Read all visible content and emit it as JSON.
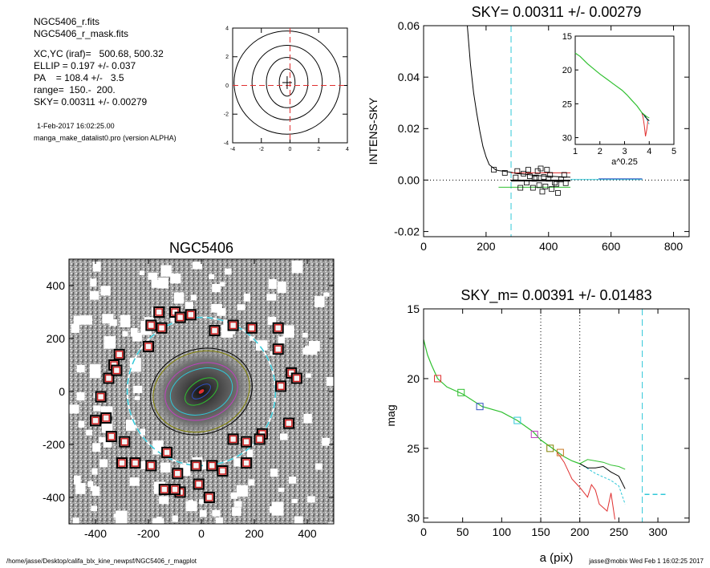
{
  "info": {
    "file1": "NGC5406_r.fits",
    "file2": "NGC5406_r_mask.fits",
    "xcyc": "XC,YC (iraf)=   500.68, 500.32",
    "ellip": "ELLIP = 0.197 +/- 0.037",
    "pa": "PA    = 108.4 +/-   3.5",
    "range": "range=  150.-  200.",
    "sky": "SKY= 0.00311 +/- 0.00279",
    "date": "1-Feb-2017 16:02:25.00",
    "program": "manga_make_datalist0.pro (version ALPHA)"
  },
  "footer": {
    "left": "/home/jasse/Desktop/califa_blx_kine_newpsf/NGC5406_r_magplot",
    "right": "jasse@mobix  Wed Feb  1 16:02:25 2017"
  },
  "colors": {
    "red": "#e03030",
    "green": "#30c030",
    "cyan": "#30c8d8",
    "blue": "#3050c0",
    "magenta": "#c040c0",
    "olive": "#808000",
    "orange": "#c87820"
  },
  "chart_data": [
    {
      "id": "contour",
      "type": "contour",
      "xlim": [
        -4,
        4
      ],
      "ylim": [
        -4,
        4
      ],
      "xticks": [
        "-4",
        "-2",
        "0",
        "2",
        "4"
      ],
      "yticks": [
        "-4",
        "-2",
        "0",
        "2",
        "4"
      ],
      "center": [
        -0.2,
        0.2
      ],
      "levels": [
        {
          "rx": 0.55,
          "ry": 0.95
        },
        {
          "rx": 1.45,
          "ry": 1.75
        },
        {
          "rx": 2.45,
          "ry": 2.6
        },
        {
          "rx": 3.7,
          "ry": 3.6
        }
      ]
    },
    {
      "id": "sky_profile",
      "type": "line",
      "title": "SKY= 0.00311 +/- 0.00279",
      "xlabel": "",
      "ylabel": "INTENS-SKY",
      "xlim": [
        0,
        850
      ],
      "ylim": [
        -0.022,
        0.06
      ],
      "xticks": [
        "0",
        "200",
        "400",
        "600",
        "800"
      ],
      "yticks": [
        "-0.02",
        "0.00",
        "0.02",
        "0.04",
        "0.06"
      ],
      "ytick_values": [
        -0.02,
        0,
        0.02,
        0.04,
        0.06
      ],
      "xtick_values": [
        0,
        200,
        400,
        600,
        800
      ],
      "vline_cyan": 280,
      "profile": [
        [
          140,
          0.06
        ],
        [
          150,
          0.045
        ],
        [
          160,
          0.034
        ],
        [
          170,
          0.026
        ],
        [
          180,
          0.019
        ],
        [
          190,
          0.013
        ],
        [
          200,
          0.009
        ],
        [
          210,
          0.006
        ],
        [
          220,
          0.005
        ],
        [
          230,
          0.004
        ],
        [
          240,
          0.0037
        ],
        [
          260,
          0.0034
        ],
        [
          280,
          0.003
        ],
        [
          300,
          0.0025
        ],
        [
          330,
          0.0022
        ],
        [
          360,
          0.0018
        ],
        [
          400,
          0.0015
        ],
        [
          450,
          0.0012
        ],
        [
          470,
          0.0011
        ]
      ],
      "segments": [
        {
          "color": "red",
          "x": [
            280,
            470
          ],
          "y": 0.0028
        },
        {
          "color": "black",
          "x": [
            280,
            470
          ],
          "y": -0.0002
        },
        {
          "color": "green",
          "x": [
            240,
            470
          ],
          "y": -0.0028
        },
        {
          "color": "cyan",
          "x": [
            470,
            700
          ],
          "y": 0.0002
        },
        {
          "color": "blue",
          "x": [
            560,
            700
          ],
          "y": 0.0005
        }
      ],
      "squares": [
        [
          225,
          0.004
        ],
        [
          260,
          0.0028
        ],
        [
          295,
          0.001
        ],
        [
          300,
          0.0035
        ],
        [
          310,
          -0.003
        ],
        [
          320,
          0.0025
        ],
        [
          330,
          -0.001
        ],
        [
          335,
          0.004
        ],
        [
          340,
          0.0015
        ],
        [
          350,
          -0.003
        ],
        [
          355,
          0.0005
        ],
        [
          360,
          0.001
        ],
        [
          365,
          0.0035
        ],
        [
          370,
          -0.002
        ],
        [
          375,
          0.0045
        ],
        [
          380,
          -0.0045
        ],
        [
          385,
          0.0012
        ],
        [
          390,
          -0.0025
        ],
        [
          395,
          0.004
        ],
        [
          400,
          0.0005
        ],
        [
          405,
          0.002
        ],
        [
          410,
          -0.0035
        ],
        [
          420,
          -0.001
        ],
        [
          425,
          -0.0015
        ],
        [
          430,
          -0.005
        ],
        [
          440,
          0.0002
        ],
        [
          450,
          0.002
        ],
        [
          455,
          -0.0012
        ]
      ],
      "inset": {
        "xlabel": "a^0.25",
        "xlim": [
          1,
          5
        ],
        "ylim": [
          15,
          31
        ],
        "xticks": [
          "1",
          "2",
          "3",
          "4",
          "5"
        ],
        "yticks": [
          "15",
          "20",
          "25",
          "30"
        ],
        "xtick_values": [
          1,
          2,
          3,
          4,
          5
        ],
        "ytick_values": [
          15,
          20,
          25,
          30
        ],
        "curve": [
          [
            1.0,
            17.5
          ],
          [
            1.2,
            18.0
          ],
          [
            1.5,
            19.1
          ],
          [
            1.8,
            20.0
          ],
          [
            2.0,
            20.6
          ],
          [
            2.3,
            21.4
          ],
          [
            2.6,
            22.2
          ],
          [
            2.9,
            23.0
          ],
          [
            3.1,
            23.7
          ],
          [
            3.3,
            24.5
          ],
          [
            3.5,
            25.3
          ],
          [
            3.6,
            25.8
          ],
          [
            3.7,
            26.3
          ]
        ],
        "tail_black": [
          [
            3.7,
            26.3
          ],
          [
            3.8,
            26.7
          ],
          [
            3.9,
            27.2
          ],
          [
            4.0,
            27.5
          ]
        ],
        "tail_red": [
          [
            3.7,
            26.3
          ],
          [
            3.75,
            27.0
          ],
          [
            3.8,
            28.2
          ],
          [
            3.85,
            29.8
          ],
          [
            3.9,
            28.8
          ],
          [
            3.95,
            27.4
          ]
        ],
        "tail_green": [
          [
            3.7,
            26.3
          ],
          [
            3.8,
            26.6
          ],
          [
            3.9,
            26.9
          ],
          [
            4.0,
            27.1
          ]
        ],
        "tail_cyan": [
          [
            3.7,
            26.3
          ],
          [
            3.8,
            26.8
          ],
          [
            3.9,
            27.3
          ],
          [
            4.0,
            28.0
          ]
        ]
      }
    },
    {
      "id": "galaxy_image",
      "type": "image",
      "title": "NGC5406",
      "xlim": [
        -500,
        500
      ],
      "ylim": [
        -500,
        500
      ],
      "xticks": [
        "-400",
        "-200",
        "0",
        "200",
        "400"
      ],
      "yticks": [
        "-400",
        "-200",
        "0",
        "200",
        "400"
      ],
      "tick_values": [
        -400,
        -200,
        0,
        200,
        400
      ],
      "sky_circle_r": 280,
      "isophotes": [
        {
          "color": "black",
          "rx": 195,
          "ry": 160
        },
        {
          "color": "olive",
          "rx": 185,
          "ry": 150
        },
        {
          "color": "magenta",
          "rx": 140,
          "ry": 105
        },
        {
          "color": "cyan",
          "rx": 120,
          "ry": 85
        },
        {
          "color": "green",
          "rx": 70,
          "ry": 40
        },
        {
          "color": "blue",
          "rx": 40,
          "ry": 20
        },
        {
          "color": "red",
          "rx": 10,
          "ry": 5
        }
      ],
      "sky_boxes": [
        [
          -160,
          300
        ],
        [
          -100,
          300
        ],
        [
          -80,
          280
        ],
        [
          -40,
          290
        ],
        [
          -190,
          250
        ],
        [
          -150,
          240
        ],
        [
          50,
          230
        ],
        [
          120,
          250
        ],
        [
          190,
          240
        ],
        [
          290,
          240
        ],
        [
          -310,
          140
        ],
        [
          -200,
          170
        ],
        [
          290,
          160
        ],
        [
          -330,
          100
        ],
        [
          -350,
          50
        ],
        [
          -320,
          80
        ],
        [
          340,
          70
        ],
        [
          360,
          50
        ],
        [
          -380,
          -20
        ],
        [
          300,
          20
        ],
        [
          -360,
          -100
        ],
        [
          -400,
          -110
        ],
        [
          330,
          -120
        ],
        [
          -340,
          -170
        ],
        [
          -290,
          -190
        ],
        [
          230,
          -160
        ],
        [
          170,
          -190
        ],
        [
          120,
          -180
        ],
        [
          -300,
          -270
        ],
        [
          -250,
          -270
        ],
        [
          -190,
          -280
        ],
        [
          -130,
          -230
        ],
        [
          -90,
          -310
        ],
        [
          -20,
          -280
        ],
        [
          40,
          -280
        ],
        [
          80,
          -300
        ],
        [
          170,
          -270
        ],
        [
          -10,
          -350
        ],
        [
          -140,
          -370
        ],
        [
          -80,
          -380
        ],
        [
          30,
          -400
        ],
        [
          -100,
          -370
        ],
        [
          220,
          -180
        ]
      ]
    },
    {
      "id": "mag_profile",
      "type": "line",
      "title": "SKY_m=  0.00391 +/- 0.01483",
      "xlabel": "a (pix)",
      "ylabel": "mag",
      "xlim": [
        0,
        340
      ],
      "ylim": [
        15,
        30.3
      ],
      "xticks": [
        "0",
        "50",
        "100",
        "150",
        "200",
        "250",
        "300"
      ],
      "xtick_values": [
        0,
        50,
        100,
        150,
        200,
        250,
        300
      ],
      "yticks": [
        "15",
        "20",
        "25",
        "30"
      ],
      "ytick_values": [
        15,
        20,
        25,
        30
      ],
      "vlines_dotted": [
        150,
        200
      ],
      "vline_cyan": 280,
      "sky_level": {
        "x": [
          283,
          310
        ],
        "y": 28.3
      },
      "main_curve": [
        [
          0,
          17.2
        ],
        [
          5,
          18.3
        ],
        [
          10,
          19.0
        ],
        [
          18,
          20.0
        ],
        [
          30,
          20.6
        ],
        [
          50,
          21.1
        ],
        [
          75,
          22.0
        ],
        [
          100,
          22.4
        ],
        [
          120,
          23.0
        ],
        [
          140,
          23.8
        ],
        [
          150,
          24.4
        ],
        [
          160,
          24.8
        ],
        [
          170,
          25.2
        ],
        [
          180,
          25.6
        ],
        [
          190,
          25.9
        ],
        [
          200,
          26.1
        ]
      ],
      "tail_black": [
        [
          200,
          26.1
        ],
        [
          210,
          26.4
        ],
        [
          220,
          26.4
        ],
        [
          230,
          26.3
        ],
        [
          240,
          26.7
        ],
        [
          250,
          27.0
        ],
        [
          258,
          27.9
        ]
      ],
      "tail_green": [
        [
          200,
          26.1
        ],
        [
          210,
          25.8
        ],
        [
          220,
          25.9
        ],
        [
          230,
          26.0
        ],
        [
          240,
          26.2
        ],
        [
          250,
          26.3
        ],
        [
          258,
          26.5
        ]
      ],
      "tail_red": [
        [
          170,
          25.2
        ],
        [
          180,
          26.0
        ],
        [
          190,
          27.2
        ],
        [
          200,
          27.8
        ],
        [
          210,
          28.5
        ],
        [
          215,
          27.6
        ],
        [
          220,
          28.0
        ],
        [
          225,
          29.0
        ],
        [
          235,
          29.5
        ],
        [
          240,
          28.2
        ],
        [
          245,
          30.1
        ]
      ],
      "tail_cyan": [
        [
          200,
          26.1
        ],
        [
          220,
          26.8
        ],
        [
          240,
          27.3
        ],
        [
          250,
          27.7
        ],
        [
          258,
          29.0
        ]
      ],
      "markers": [
        {
          "color": "red",
          "x": 18,
          "y": 20.0
        },
        {
          "color": "green",
          "x": 48,
          "y": 21.0
        },
        {
          "color": "blue",
          "x": 72,
          "y": 22.0
        },
        {
          "color": "cyan",
          "x": 120,
          "y": 23.0
        },
        {
          "color": "magenta",
          "x": 142,
          "y": 24.0
        },
        {
          "color": "olive",
          "x": 162,
          "y": 25.0
        },
        {
          "color": "orange",
          "x": 175,
          "y": 25.3
        }
      ]
    }
  ]
}
